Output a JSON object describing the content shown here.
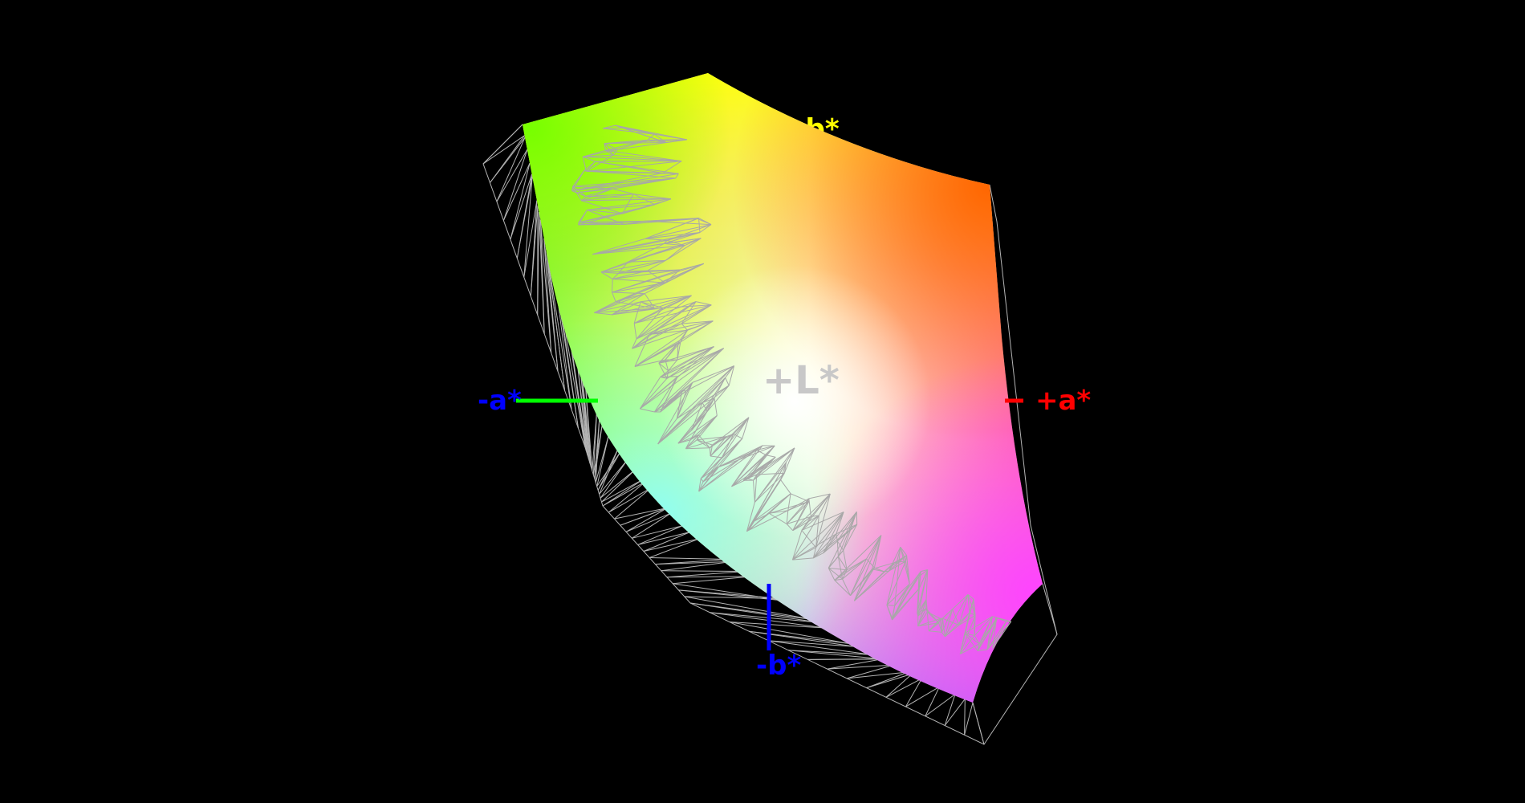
{
  "axes": {
    "plus_b": {
      "label": "+b*",
      "color": "#ffff00"
    },
    "minus_a": {
      "label": "-a*",
      "color": "#0000ff",
      "line_color": "#00ff00"
    },
    "plus_a": {
      "label": "+a*",
      "color": "#ff0000",
      "line_color": "#ff0000"
    },
    "plus_l": {
      "label": "+L*",
      "color": "#c8c8c8"
    },
    "minus_b": {
      "label": "-b*",
      "color": "#0000ff",
      "line_color": "#0000ff"
    }
  },
  "colors": {
    "background": "#000000",
    "wireframe": "#b4b4b4"
  }
}
